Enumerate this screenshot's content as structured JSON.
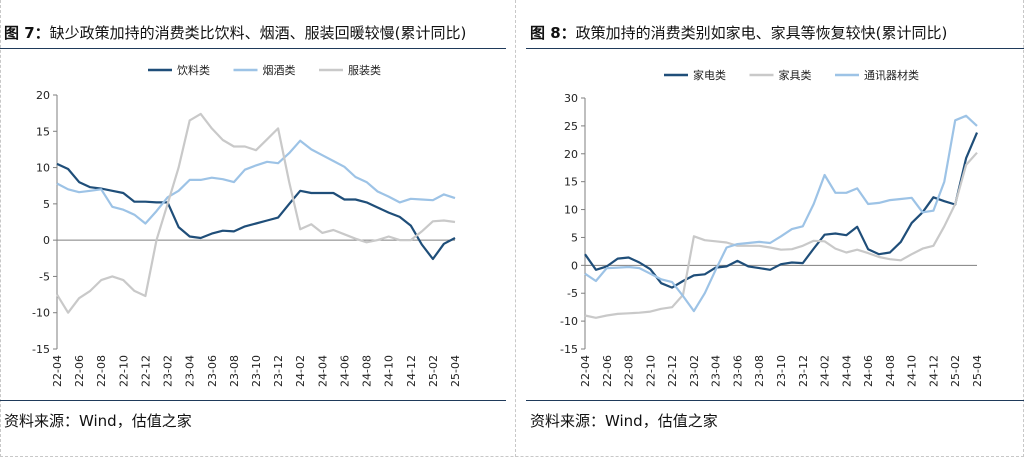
{
  "left": {
    "fig_label": "图 7：",
    "title": "缺少政策加持的消费类比饮料、烟酒、服装回暖较慢(累计同比)",
    "source": "资料来源：Wind，估值之家",
    "chart_data": {
      "type": "line",
      "title": "",
      "xlabel": "",
      "ylabel": "",
      "ylim": [
        -15,
        20
      ],
      "yticks": [
        -15,
        -10,
        -5,
        0,
        5,
        10,
        15,
        20
      ],
      "grid": false,
      "legend": "top-center",
      "x": [
        "22-04",
        "22-05",
        "22-06",
        "22-07",
        "22-08",
        "22-09",
        "22-10",
        "22-11",
        "22-12",
        "23-01",
        "23-02",
        "23-03",
        "23-04",
        "23-05",
        "23-06",
        "23-07",
        "23-08",
        "23-09",
        "23-10",
        "23-11",
        "23-12",
        "24-01",
        "24-02",
        "24-03",
        "24-04",
        "24-05",
        "24-06",
        "24-07",
        "24-08",
        "24-09",
        "24-10",
        "24-11",
        "24-12",
        "25-01",
        "25-02",
        "25-03",
        "25-04"
      ],
      "xtick_labels": [
        "22-04",
        "22-06",
        "22-08",
        "22-10",
        "22-12",
        "23-02",
        "23-04",
        "23-06",
        "23-08",
        "23-10",
        "23-12",
        "24-02",
        "24-04",
        "24-06",
        "24-08",
        "24-10",
        "24-12",
        "25-02",
        "25-04"
      ],
      "series": [
        {
          "name": "饮料类",
          "color": "#1f4e79",
          "values": [
            10.5,
            9.8,
            8.0,
            7.3,
            7.1,
            6.8,
            6.5,
            5.3,
            5.3,
            5.2,
            5.2,
            1.8,
            0.5,
            0.3,
            0.9,
            1.3,
            1.2,
            1.9,
            2.3,
            2.7,
            3.1,
            5.0,
            6.8,
            6.5,
            6.5,
            6.5,
            5.6,
            5.6,
            5.2,
            4.5,
            3.8,
            3.2,
            2.0,
            -0.6,
            -2.6,
            -0.5,
            0.3
          ]
        },
        {
          "name": "烟酒类",
          "color": "#9dc3e6",
          "values": [
            7.8,
            7.0,
            6.6,
            6.8,
            7.0,
            4.6,
            4.2,
            3.5,
            2.3,
            4.0,
            5.9,
            6.8,
            8.3,
            8.3,
            8.6,
            8.4,
            8.0,
            9.7,
            10.3,
            10.8,
            10.6,
            12.0,
            13.7,
            12.5,
            11.7,
            10.9,
            10.1,
            8.7,
            8.0,
            6.7,
            6.0,
            5.2,
            5.7,
            5.6,
            5.5,
            6.3,
            5.8
          ]
        },
        {
          "name": "服装类",
          "color": "#c9c9c9",
          "values": [
            -7.5,
            -10.0,
            -8.0,
            -7.0,
            -5.5,
            -5.0,
            -5.5,
            -7.0,
            -7.7,
            0.0,
            5.0,
            10.0,
            16.5,
            17.4,
            15.4,
            13.8,
            12.9,
            12.9,
            12.4,
            13.9,
            15.4,
            8.0,
            1.5,
            2.2,
            1.0,
            1.4,
            0.8,
            0.2,
            -0.3,
            0.0,
            0.5,
            0.0,
            0.0,
            1.2,
            2.6,
            2.7,
            2.5
          ]
        }
      ]
    }
  },
  "right": {
    "fig_label": "图 8：",
    "title": "政策加持的消费类别如家电、家具等恢复较快(累计同比)",
    "source": "资料来源：Wind，估值之家",
    "chart_data": {
      "type": "line",
      "title": "",
      "xlabel": "",
      "ylabel": "",
      "ylim": [
        -15,
        30
      ],
      "yticks": [
        -15,
        -10,
        -5,
        0,
        5,
        10,
        15,
        20,
        25,
        30
      ],
      "grid": false,
      "legend": "top-center",
      "x": [
        "22-04",
        "22-05",
        "22-06",
        "22-07",
        "22-08",
        "22-09",
        "22-10",
        "22-11",
        "22-12",
        "23-01",
        "23-02",
        "23-03",
        "23-04",
        "23-05",
        "23-06",
        "23-07",
        "23-08",
        "23-09",
        "23-10",
        "23-11",
        "23-12",
        "24-01",
        "24-02",
        "24-03",
        "24-04",
        "24-05",
        "24-06",
        "24-07",
        "24-08",
        "24-09",
        "24-10",
        "24-11",
        "24-12",
        "25-01",
        "25-02",
        "25-03",
        "25-04"
      ],
      "xtick_labels": [
        "22-04",
        "22-06",
        "22-08",
        "22-10",
        "22-12",
        "23-02",
        "23-04",
        "23-06",
        "23-08",
        "23-10",
        "23-12",
        "24-02",
        "24-04",
        "24-06",
        "24-08",
        "24-10",
        "24-12",
        "25-02",
        "25-04"
      ],
      "series": [
        {
          "name": "家电类",
          "color": "#1f4e79",
          "values": [
            2.0,
            -0.8,
            -0.2,
            1.2,
            1.4,
            0.5,
            -0.7,
            -3.2,
            -4.0,
            -2.8,
            -1.8,
            -1.6,
            -0.4,
            -0.2,
            0.8,
            -0.2,
            -0.5,
            -0.8,
            0.2,
            0.5,
            0.4,
            3.0,
            5.5,
            5.7,
            5.4,
            6.9,
            2.9,
            2.0,
            2.3,
            4.2,
            7.6,
            9.5,
            12.2,
            11.5,
            10.9,
            19.2,
            23.8
          ]
        },
        {
          "name": "家具类",
          "color": "#c9c9c9",
          "values": [
            -9.0,
            -9.4,
            -9.0,
            -8.7,
            -8.6,
            -8.5,
            -8.3,
            -7.8,
            -7.5,
            -5.3,
            5.2,
            4.5,
            4.3,
            4.1,
            3.5,
            3.5,
            3.5,
            3.2,
            2.8,
            2.9,
            3.5,
            4.4,
            4.3,
            3.0,
            2.3,
            2.8,
            2.2,
            1.5,
            1.1,
            0.9,
            2.0,
            3.0,
            3.5,
            7.0,
            11.0,
            18.0,
            20.2
          ]
        },
        {
          "name": "通讯器材类",
          "color": "#9dc3e6",
          "values": [
            -1.5,
            -2.8,
            -0.5,
            -0.4,
            -0.3,
            -0.5,
            -1.5,
            -2.5,
            -3.0,
            -5.5,
            -8.2,
            -5.0,
            -0.8,
            3.2,
            3.8,
            4.0,
            4.2,
            4.0,
            5.2,
            6.5,
            7.0,
            11.0,
            16.2,
            13.0,
            13.0,
            13.8,
            11.0,
            11.2,
            11.7,
            11.9,
            12.1,
            9.5,
            9.8,
            15.0,
            26.0,
            26.8,
            25.0
          ]
        }
      ]
    }
  }
}
